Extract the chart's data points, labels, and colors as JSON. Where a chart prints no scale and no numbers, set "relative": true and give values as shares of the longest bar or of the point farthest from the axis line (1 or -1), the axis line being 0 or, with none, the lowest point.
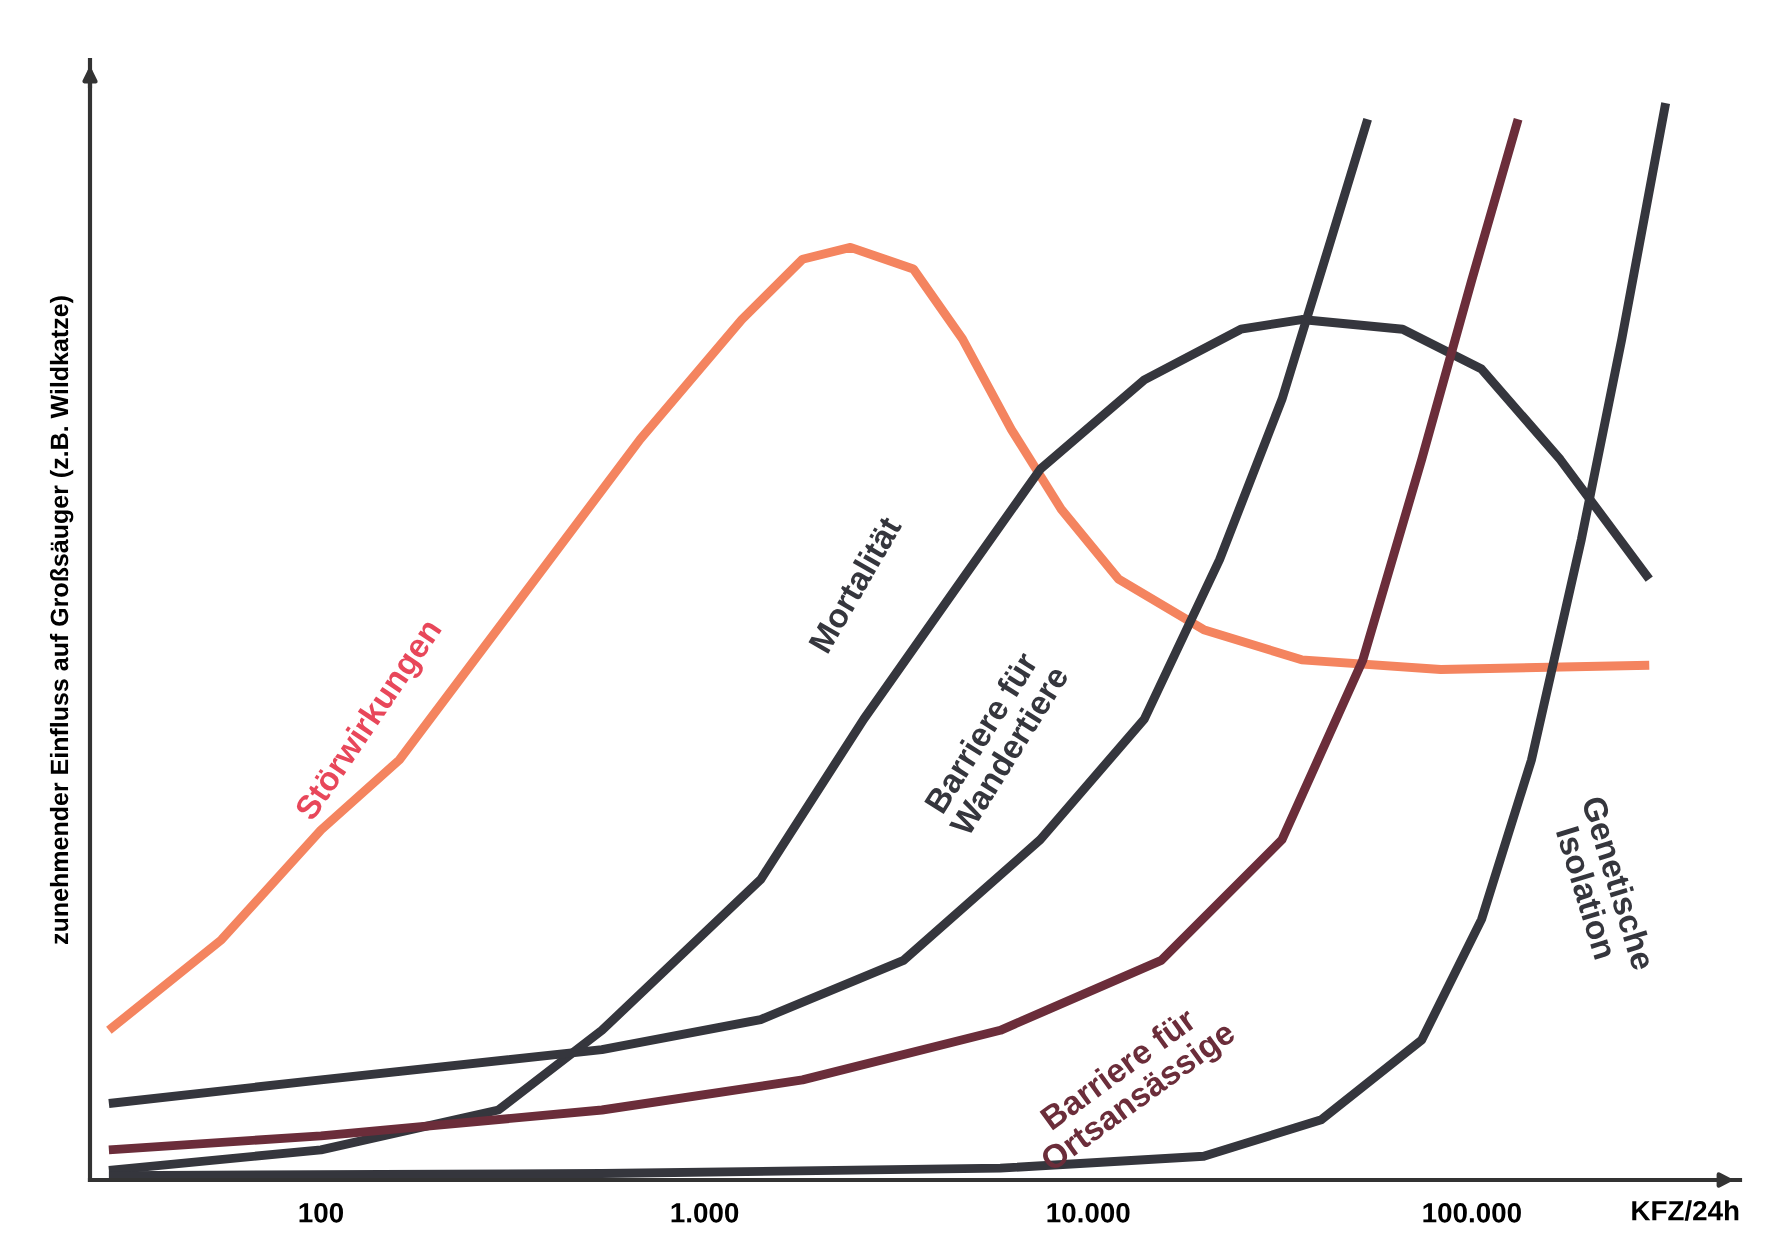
{
  "chart_data": {
    "type": "line",
    "relative": true,
    "log": "x",
    "ylabel": "zunehmender Einfluss auf Großsäuger (z.B. Wildkatze)",
    "xlabel": "KFZ/24h",
    "xlim": [
      25,
      500000
    ],
    "xticks": [
      {
        "value": 100,
        "label": "100"
      },
      {
        "value": 1000,
        "label": "1.000"
      },
      {
        "value": 10000,
        "label": "10.000"
      },
      {
        "value": 100000,
        "label": "100.000"
      }
    ],
    "grid": false,
    "legend": false,
    "marker": "none",
    "line_style": "solid",
    "series": [
      {
        "name": "Störwirkungen",
        "color": "#f4845f",
        "x": [
          28,
          55,
          100,
          160,
          330,
          680,
          1250,
          1800,
          2400,
          3500,
          4700,
          6300,
          8500,
          12000,
          20000,
          36000,
          83000,
          290000
        ],
        "values": [
          0.139,
          0.223,
          0.325,
          0.39,
          0.539,
          0.688,
          0.799,
          0.855,
          0.866,
          0.846,
          0.781,
          0.697,
          0.623,
          0.558,
          0.511,
          0.483,
          0.474,
          0.478
        ]
      },
      {
        "name": "Mortalität",
        "color": "#35363d",
        "x": [
          28,
          100,
          290,
          540,
          1400,
          2600,
          4700,
          7500,
          14000,
          25000,
          36000,
          66000,
          106000,
          170000,
          290000
        ],
        "values": [
          0.009,
          0.028,
          0.065,
          0.139,
          0.279,
          0.428,
          0.558,
          0.66,
          0.743,
          0.79,
          0.799,
          0.79,
          0.753,
          0.669,
          0.558
        ]
      },
      {
        "name": "Barriere für\nWandertiere",
        "color": "#35363d",
        "x": [
          28,
          100,
          540,
          1400,
          3300,
          7500,
          14000,
          22000,
          32000,
          43000,
          53500
        ],
        "values": [
          0.071,
          0.093,
          0.121,
          0.149,
          0.204,
          0.316,
          0.428,
          0.576,
          0.725,
          0.874,
          0.985
        ]
      },
      {
        "name": "Barriere für\nOrtsansässige",
        "color": "#6b2d3a",
        "x": [
          28,
          100,
          540,
          1800,
          5900,
          15500,
          32000,
          52000,
          74000,
          100000,
          132000
        ],
        "values": [
          0.028,
          0.041,
          0.065,
          0.093,
          0.139,
          0.204,
          0.316,
          0.483,
          0.669,
          0.836,
          0.985
        ]
      },
      {
        "name": "Genetische\nIsolation",
        "color": "#35363d",
        "x": [
          28,
          540,
          5900,
          20000,
          40500,
          74000,
          106000,
          143000,
          193000,
          246000,
          320000
        ],
        "values": [
          0.004,
          0.006,
          0.011,
          0.022,
          0.056,
          0.13,
          0.242,
          0.39,
          0.595,
          0.781,
          1
        ]
      }
    ]
  }
}
